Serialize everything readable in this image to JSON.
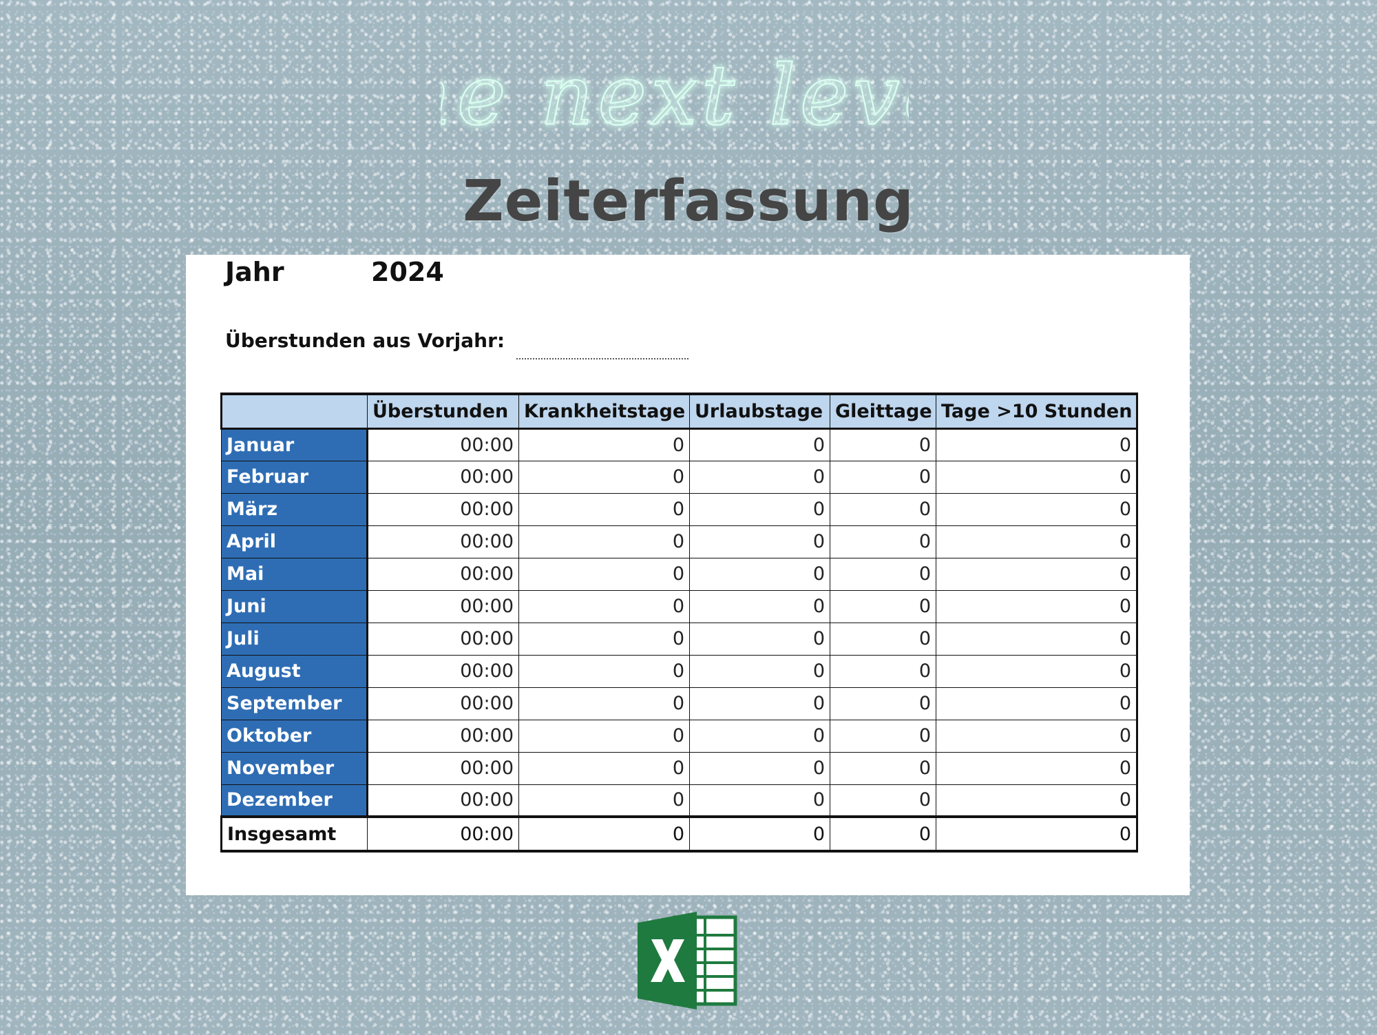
{
  "brand": {
    "script_logo_text": "the next level"
  },
  "title": "Zeiterfassung",
  "sheet": {
    "year_label": "Jahr",
    "year_value": "2024",
    "carryover_label": "Überstunden aus Vorjahr:",
    "carryover_value": ""
  },
  "table": {
    "headers": [
      "",
      "Überstunden",
      "Krankheitstage",
      "Urlaubstage",
      "Gleittage",
      "Tage >10 Stunden"
    ],
    "rows": [
      {
        "month": "Januar",
        "values": [
          "00:00",
          "0",
          "0",
          "0",
          "0"
        ]
      },
      {
        "month": "Februar",
        "values": [
          "00:00",
          "0",
          "0",
          "0",
          "0"
        ]
      },
      {
        "month": "März",
        "values": [
          "00:00",
          "0",
          "0",
          "0",
          "0"
        ]
      },
      {
        "month": "April",
        "values": [
          "00:00",
          "0",
          "0",
          "0",
          "0"
        ]
      },
      {
        "month": "Mai",
        "values": [
          "00:00",
          "0",
          "0",
          "0",
          "0"
        ]
      },
      {
        "month": "Juni",
        "values": [
          "00:00",
          "0",
          "0",
          "0",
          "0"
        ]
      },
      {
        "month": "Juli",
        "values": [
          "00:00",
          "0",
          "0",
          "0",
          "0"
        ]
      },
      {
        "month": "August",
        "values": [
          "00:00",
          "0",
          "0",
          "0",
          "0"
        ]
      },
      {
        "month": "September",
        "values": [
          "00:00",
          "0",
          "0",
          "0",
          "0"
        ]
      },
      {
        "month": "Oktober",
        "values": [
          "00:00",
          "0",
          "0",
          "0",
          "0"
        ]
      },
      {
        "month": "November",
        "values": [
          "00:00",
          "0",
          "0",
          "0",
          "0"
        ]
      },
      {
        "month": "Dezember",
        "values": [
          "00:00",
          "0",
          "0",
          "0",
          "0"
        ]
      }
    ],
    "total": {
      "label": "Insgesamt",
      "values": [
        "00:00",
        "0",
        "0",
        "0",
        "0"
      ]
    }
  },
  "icons": {
    "app_icon": "excel-icon"
  },
  "colors": {
    "header_fill": "#bed6ee",
    "month_fill": "#2e6db4",
    "title_text": "#454545",
    "neon_glow": "#7af0c0",
    "excel_green": "#1f7a3f"
  }
}
